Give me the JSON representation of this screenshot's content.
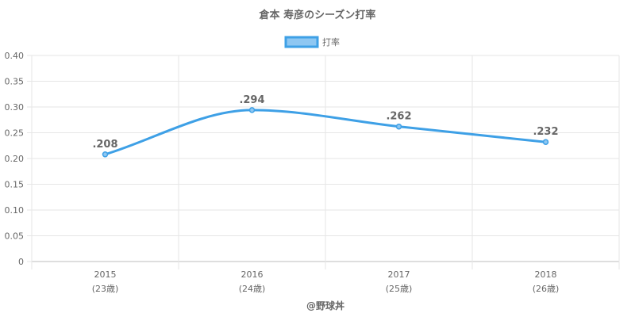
{
  "chart_data": {
    "type": "line",
    "title": "倉本 寿彦のシーズン打率",
    "legend": {
      "label": "打率",
      "position": "top"
    },
    "categories": [
      "2015",
      "2016",
      "2017",
      "2018"
    ],
    "category_sublabels": [
      "(23歳)",
      "(24歳)",
      "(25歳)",
      "(26歳)"
    ],
    "series": [
      {
        "name": "打率",
        "values": [
          0.208,
          0.294,
          0.262,
          0.232
        ],
        "labels": [
          ".208",
          ".294",
          ".262",
          ".232"
        ]
      }
    ],
    "yticks": [
      "0",
      "0.05",
      "0.10",
      "0.15",
      "0.20",
      "0.25",
      "0.30",
      "0.35",
      "0.40"
    ],
    "ylim": [
      0,
      0.4
    ],
    "grid": true,
    "line_color": "#3ea0e6",
    "point_fill": "#8ec7f2",
    "credit": "@野球丼"
  }
}
